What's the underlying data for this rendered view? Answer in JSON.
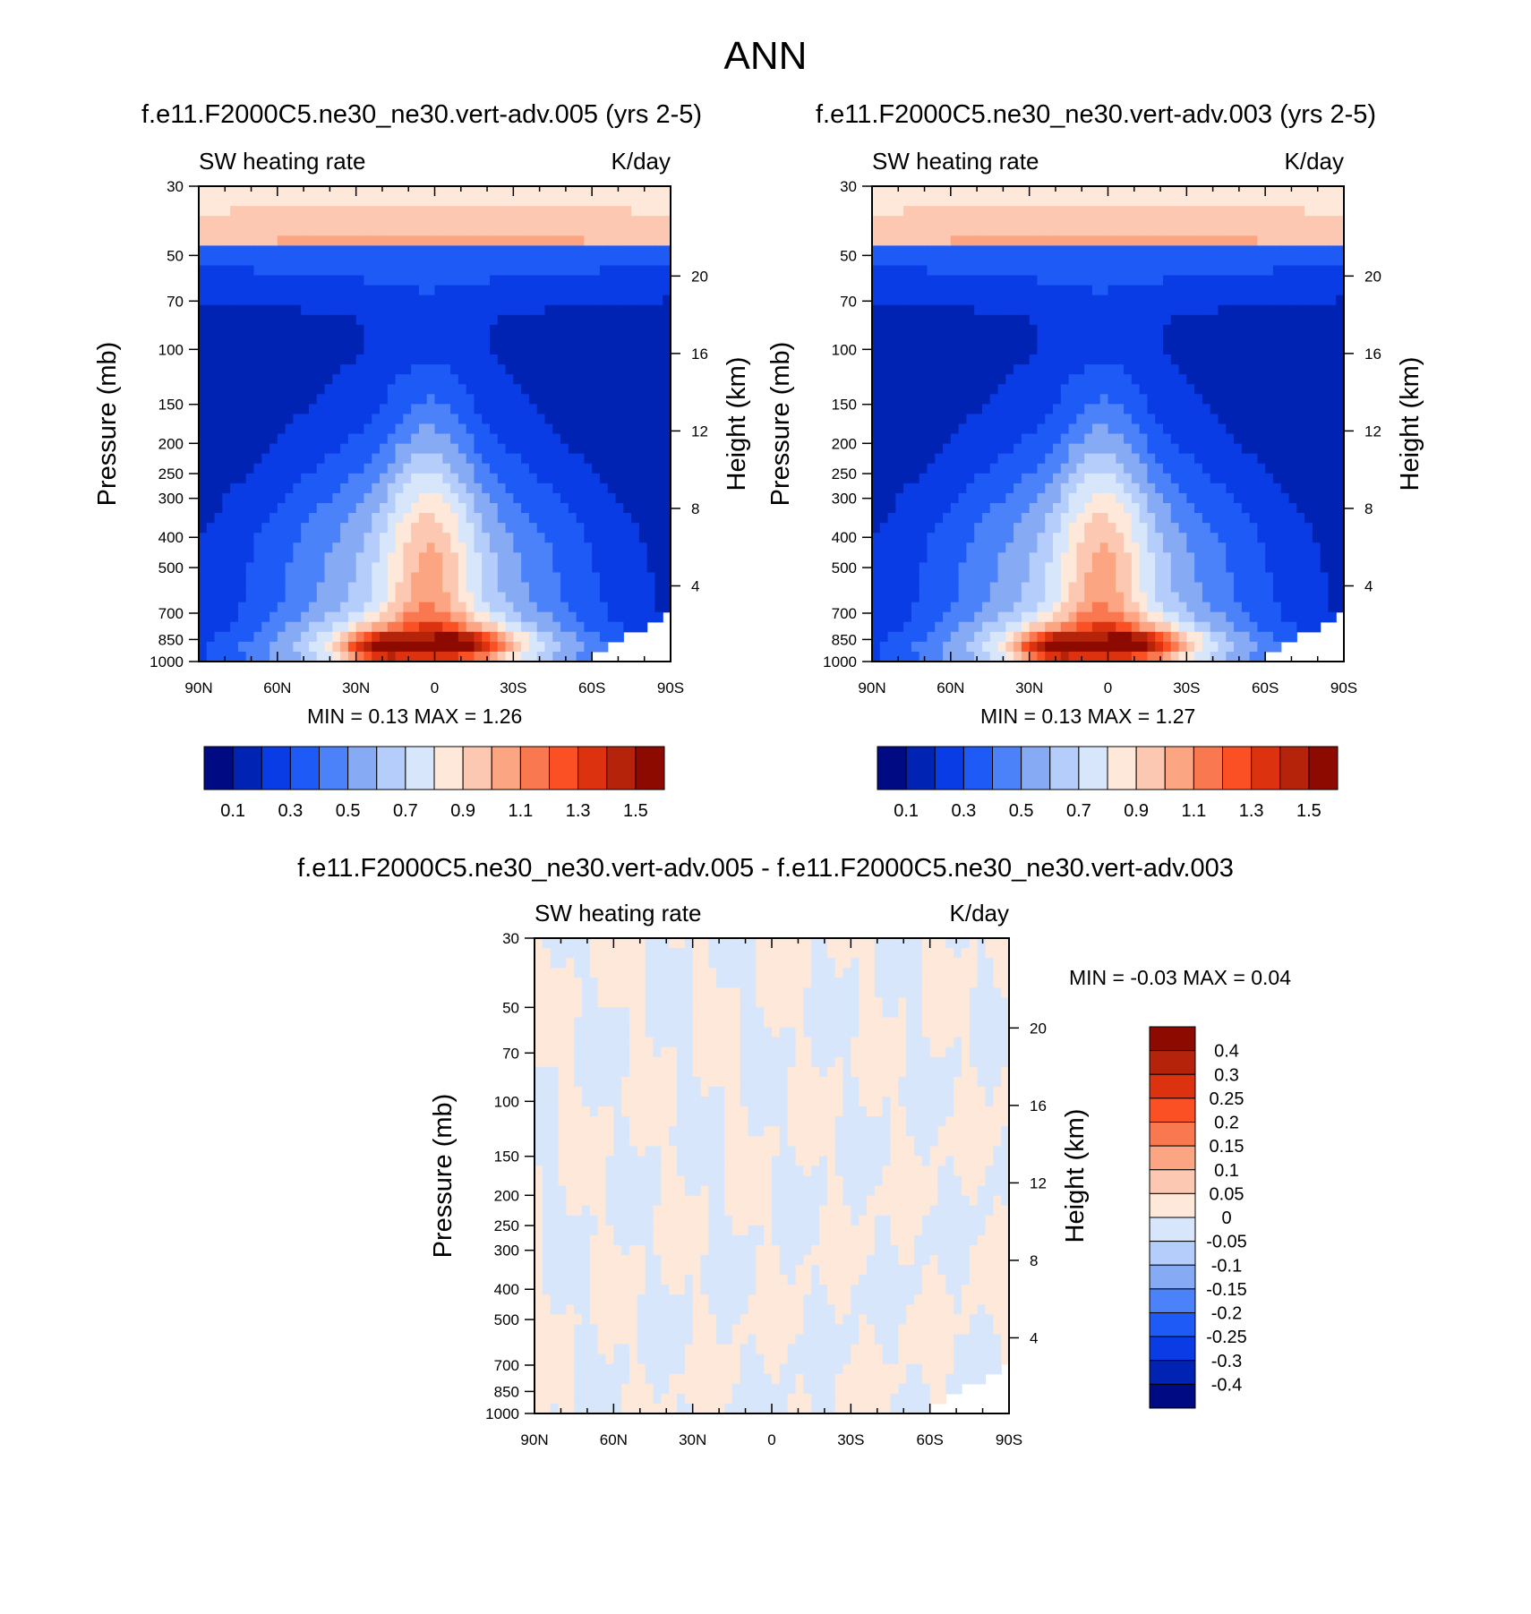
{
  "page_title": "ANN",
  "axes": {
    "pressure_ticks": [
      "30",
      "50",
      "70",
      "100",
      "150",
      "200",
      "250",
      "300",
      "400",
      "500",
      "700",
      "850",
      "1000"
    ],
    "height_ticks": [
      "20",
      "16",
      "12",
      "8",
      "4"
    ],
    "lat_ticks": [
      "90N",
      "60N",
      "30N",
      "0",
      "30S",
      "60S",
      "90S"
    ],
    "pressure_label": "Pressure (mb)",
    "height_label": "Height (km)"
  },
  "color_scales": {
    "main": {
      "colors": [
        "#000a82",
        "#0023b4",
        "#0a3ce6",
        "#1e5af5",
        "#4b82fa",
        "#87aaf5",
        "#b4cdfa",
        "#d7e6fa",
        "#fde8da",
        "#fcc8b1",
        "#fca582",
        "#fa7850",
        "#fa5023",
        "#dc3210",
        "#b4230a",
        "#8c0a00"
      ],
      "labels": [
        "0.1",
        "0.3",
        "0.5",
        "0.7",
        "0.9",
        "1.1",
        "1.3",
        "1.5"
      ]
    },
    "diff": {
      "colors": [
        "#8c0a00",
        "#b4230a",
        "#dc3210",
        "#fa5023",
        "#fa7850",
        "#fca582",
        "#fcc8b1",
        "#fde8da",
        "#d7e6fa",
        "#b4cdfa",
        "#87aaf5",
        "#4b82fa",
        "#1e5af5",
        "#0a3ce6",
        "#0023b4",
        "#000a82"
      ],
      "labels": [
        "0.4",
        "0.3",
        "0.25",
        "0.2",
        "0.15",
        "0.1",
        "0.05",
        "0",
        "-0.05",
        "-0.1",
        "-0.15",
        "-0.2",
        "-0.25",
        "-0.3",
        "-0.4"
      ]
    }
  },
  "chart_data": [
    {
      "type": "heatmap",
      "title": "f.e11.F2000C5.ne30_ne30.vert-adv.005 (yrs 2-5)",
      "left_string": "SW heating rate",
      "right_string": "K/day",
      "x_ticks": [
        "90N",
        "60N",
        "30N",
        "0",
        "30S",
        "60S",
        "90S"
      ],
      "y_ticks": [
        "30",
        "50",
        "70",
        "100",
        "150",
        "200",
        "250",
        "300",
        "400",
        "500",
        "700",
        "850",
        "1000"
      ],
      "y2_ticks": [
        "20",
        "16",
        "12",
        "8",
        "4"
      ],
      "xlabel": "",
      "ylabel": "Pressure (mb)",
      "y2label": "Height (km)",
      "xlim": [
        90,
        -90
      ],
      "ylim": [
        1000,
        30
      ],
      "levels": [
        0.1,
        0.2,
        0.3,
        0.4,
        0.5,
        0.6,
        0.7,
        0.8,
        0.9,
        1.0,
        1.1,
        1.2,
        1.3,
        1.4,
        1.5
      ],
      "min_label": "MIN =   0.13  MAX =   1.26",
      "min": 0.13,
      "max": 1.26,
      "units": "K/day"
    },
    {
      "type": "heatmap",
      "title": "f.e11.F2000C5.ne30_ne30.vert-adv.003 (yrs 2-5)",
      "left_string": "SW heating rate",
      "right_string": "K/day",
      "x_ticks": [
        "90N",
        "60N",
        "30N",
        "0",
        "30S",
        "60S",
        "90S"
      ],
      "y_ticks": [
        "30",
        "50",
        "70",
        "100",
        "150",
        "200",
        "250",
        "300",
        "400",
        "500",
        "700",
        "850",
        "1000"
      ],
      "y2_ticks": [
        "20",
        "16",
        "12",
        "8",
        "4"
      ],
      "xlabel": "",
      "ylabel": "Pressure (mb)",
      "y2label": "Height (km)",
      "xlim": [
        90,
        -90
      ],
      "ylim": [
        1000,
        30
      ],
      "levels": [
        0.1,
        0.2,
        0.3,
        0.4,
        0.5,
        0.6,
        0.7,
        0.8,
        0.9,
        1.0,
        1.1,
        1.2,
        1.3,
        1.4,
        1.5
      ],
      "min_label": "MIN =   0.13  MAX =   1.27",
      "min": 0.13,
      "max": 1.27,
      "units": "K/day"
    },
    {
      "type": "heatmap",
      "title": "f.e11.F2000C5.ne30_ne30.vert-adv.005 - f.e11.F2000C5.ne30_ne30.vert-adv.003",
      "left_string": "SW heating rate",
      "right_string": "K/day",
      "x_ticks": [
        "90N",
        "60N",
        "30N",
        "0",
        "30S",
        "60S",
        "90S"
      ],
      "y_ticks": [
        "30",
        "50",
        "70",
        "100",
        "150",
        "200",
        "250",
        "300",
        "400",
        "500",
        "700",
        "850",
        "1000"
      ],
      "y2_ticks": [
        "20",
        "16",
        "12",
        "8",
        "4"
      ],
      "xlabel": "",
      "ylabel": "Pressure (mb)",
      "y2label": "Height (km)",
      "xlim": [
        90,
        -90
      ],
      "ylim": [
        1000,
        30
      ],
      "levels": [
        -0.4,
        -0.3,
        -0.25,
        -0.2,
        -0.15,
        -0.1,
        -0.05,
        0,
        0.05,
        0.1,
        0.15,
        0.2,
        0.25,
        0.3,
        0.4
      ],
      "min_label": "MIN =  -0.03  MAX =   0.04",
      "min": -0.03,
      "max": 0.04,
      "units": "K/day"
    }
  ]
}
